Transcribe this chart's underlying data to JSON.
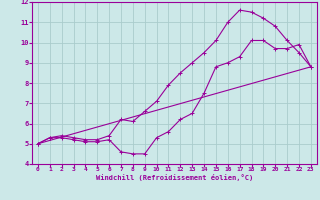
{
  "xlabel": "Windchill (Refroidissement éolien,°C)",
  "bg_color": "#cce8e8",
  "line_color": "#990099",
  "grid_color": "#aacccc",
  "xlim": [
    -0.5,
    23.5
  ],
  "ylim": [
    4,
    12
  ],
  "xticks": [
    0,
    1,
    2,
    3,
    4,
    5,
    6,
    7,
    8,
    9,
    10,
    11,
    12,
    13,
    14,
    15,
    16,
    17,
    18,
    19,
    20,
    21,
    22,
    23
  ],
  "yticks": [
    4,
    5,
    6,
    7,
    8,
    9,
    10,
    11,
    12
  ],
  "curve1_x": [
    0,
    1,
    2,
    3,
    4,
    5,
    6,
    7,
    8,
    9,
    10,
    11,
    12,
    13,
    14,
    15,
    16,
    17,
    18,
    19,
    20,
    21,
    22,
    23
  ],
  "curve1_y": [
    5.0,
    5.3,
    5.3,
    5.2,
    5.1,
    5.1,
    5.2,
    4.6,
    4.5,
    4.5,
    5.3,
    5.6,
    6.2,
    6.5,
    7.5,
    8.8,
    9.0,
    9.3,
    10.1,
    10.1,
    9.7,
    9.7,
    9.9,
    8.8
  ],
  "curve2_x": [
    0,
    1,
    2,
    3,
    4,
    5,
    6,
    7,
    8,
    9,
    10,
    11,
    12,
    13,
    14,
    15,
    16,
    17,
    18,
    19,
    20,
    21,
    22,
    23
  ],
  "curve2_y": [
    5.0,
    5.3,
    5.4,
    5.3,
    5.2,
    5.2,
    5.4,
    6.2,
    6.1,
    6.6,
    7.1,
    7.9,
    8.5,
    9.0,
    9.5,
    10.1,
    11.0,
    11.6,
    11.5,
    11.2,
    10.8,
    10.1,
    9.5,
    8.8
  ],
  "curve3_x": [
    0,
    23
  ],
  "curve3_y": [
    5.0,
    8.8
  ]
}
